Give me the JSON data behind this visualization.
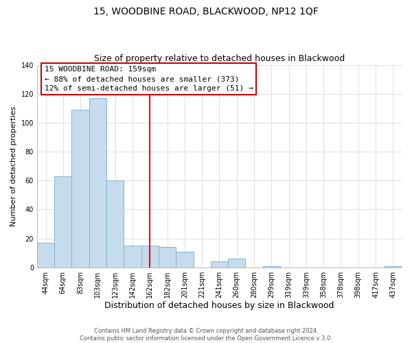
{
  "title": "15, WOODBINE ROAD, BLACKWOOD, NP12 1QF",
  "subtitle": "Size of property relative to detached houses in Blackwood",
  "xlabel": "Distribution of detached houses by size in Blackwood",
  "ylabel": "Number of detached properties",
  "footer_line1": "Contains HM Land Registry data © Crown copyright and database right 2024.",
  "footer_line2": "Contains public sector information licensed under the Open Government Licence v 3.0.",
  "bar_labels": [
    "44sqm",
    "64sqm",
    "83sqm",
    "103sqm",
    "123sqm",
    "142sqm",
    "162sqm",
    "182sqm",
    "201sqm",
    "221sqm",
    "241sqm",
    "260sqm",
    "280sqm",
    "299sqm",
    "319sqm",
    "339sqm",
    "358sqm",
    "378sqm",
    "398sqm",
    "417sqm",
    "437sqm"
  ],
  "bar_values": [
    17,
    63,
    109,
    117,
    60,
    15,
    15,
    14,
    11,
    0,
    4,
    6,
    0,
    1,
    0,
    0,
    0,
    0,
    0,
    0,
    1
  ],
  "bar_color": "#c6dcec",
  "bar_edgecolor": "#7fb3d3",
  "vline_x": 6,
  "vline_color": "red",
  "ylim": [
    0,
    140
  ],
  "yticks": [
    0,
    20,
    40,
    60,
    80,
    100,
    120,
    140
  ],
  "annotation_title": "15 WOODBINE ROAD: 159sqm",
  "annotation_line1": "← 88% of detached houses are smaller (373)",
  "annotation_line2": "12% of semi-detached houses are larger (51) →",
  "title_fontsize": 10,
  "subtitle_fontsize": 9,
  "xlabel_fontsize": 9,
  "ylabel_fontsize": 8,
  "tick_fontsize": 7,
  "ann_fontsize": 8,
  "footer_fontsize": 6
}
